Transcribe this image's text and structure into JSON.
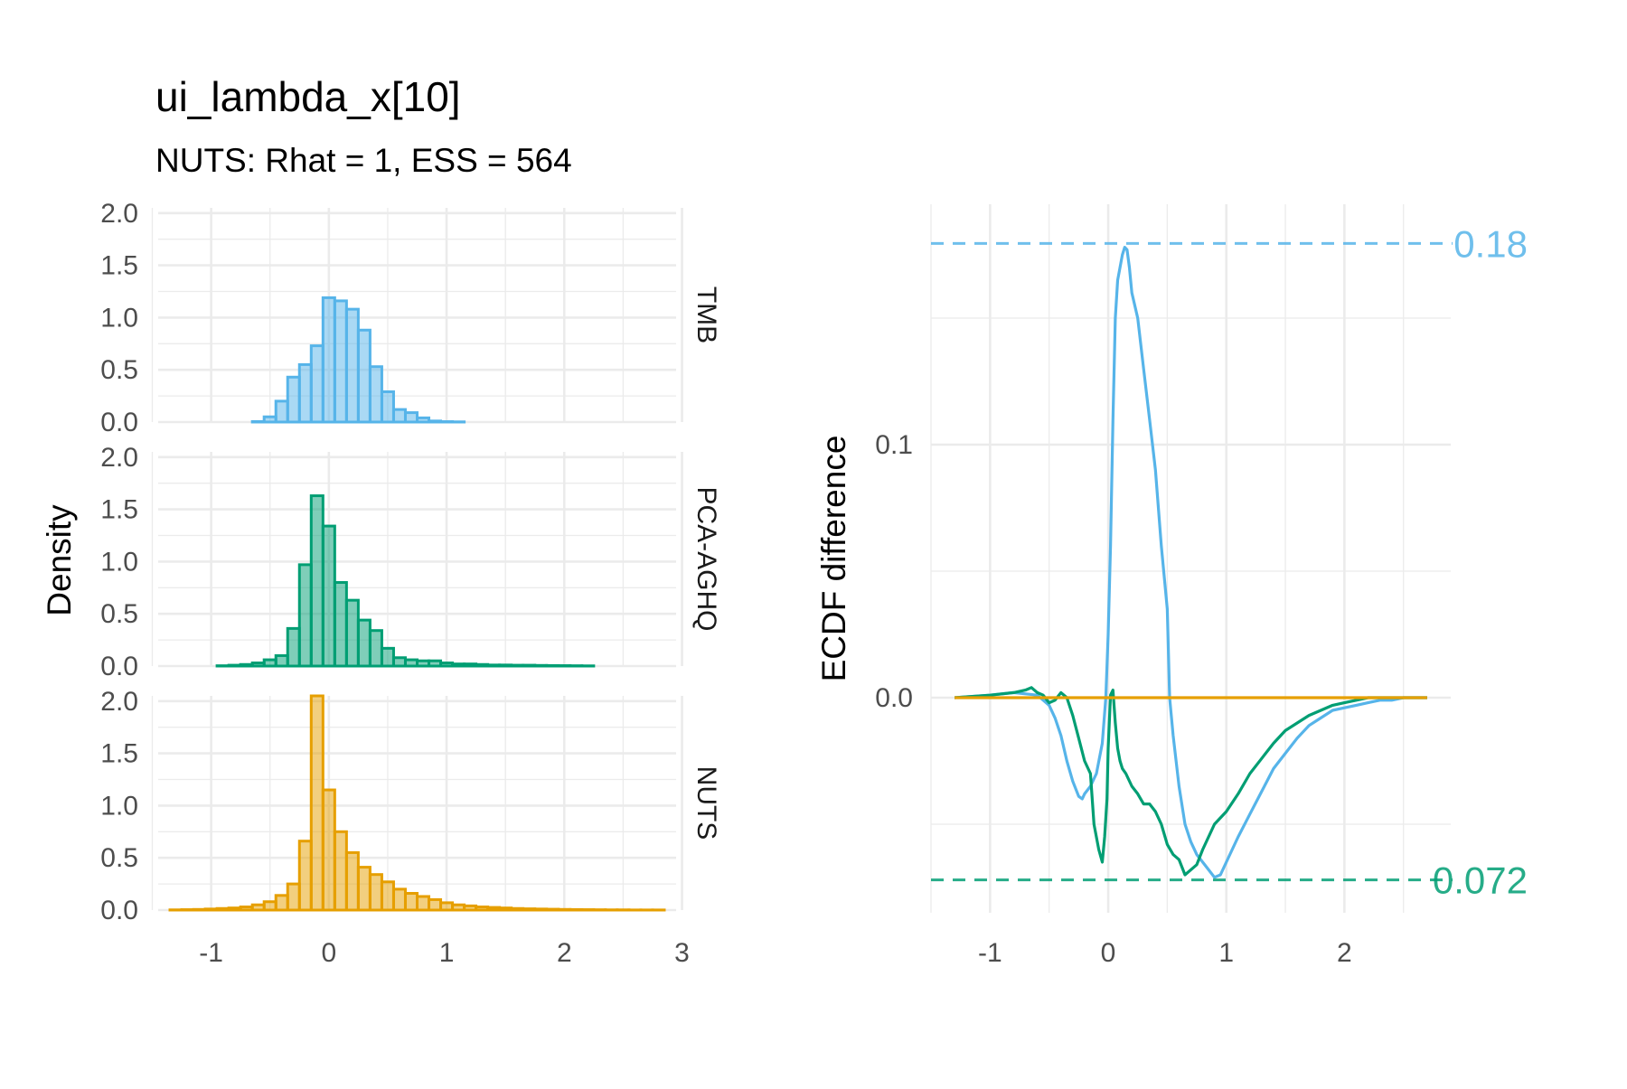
{
  "title": "ui_lambda_x[10]",
  "subtitle": "NUTS: Rhat = 1, ESS = 564",
  "colors": {
    "TMB": "#56B4E9",
    "PCA-AGHQ": "#009E73",
    "NUTS": "#E69F00"
  },
  "chart_data": [
    {
      "type": "bar",
      "subtype": "faceted-histogram",
      "ylabel": "Density",
      "xlabel": "",
      "x_ticks": [
        "-1",
        "0",
        "1",
        "2",
        "3"
      ],
      "y_ticks": [
        "0.0",
        "0.5",
        "1.0",
        "1.5",
        "2.0"
      ],
      "xlim": [
        -1.45,
        2.95
      ],
      "ylim": [
        0,
        2.05
      ],
      "bin_width": 0.1,
      "grid": true,
      "facets": [
        {
          "name": "TMB",
          "bin_centers": [
            -1.3,
            -1.2,
            -1.1,
            -1.0,
            -0.9,
            -0.8,
            -0.7,
            -0.6,
            -0.5,
            -0.4,
            -0.3,
            -0.2,
            -0.1,
            0.0,
            0.1,
            0.2,
            0.3,
            0.4,
            0.5,
            0.6,
            0.7,
            0.8,
            0.9,
            1.0,
            1.1,
            1.2,
            1.3,
            1.4,
            1.5,
            1.6,
            1.7,
            1.8,
            1.9,
            2.0,
            2.1,
            2.2,
            2.3,
            2.4,
            2.5,
            2.6,
            2.7,
            2.8
          ],
          "values": [
            0,
            0,
            0,
            0,
            0,
            0,
            0,
            0.005,
            0.05,
            0.2,
            0.43,
            0.55,
            0.73,
            1.19,
            1.16,
            1.08,
            0.88,
            0.53,
            0.29,
            0.12,
            0.09,
            0.04,
            0.01,
            0.004,
            0.002,
            0,
            0,
            0,
            0,
            0,
            0,
            0,
            0,
            0,
            0,
            0,
            0,
            0,
            0,
            0,
            0,
            0
          ]
        },
        {
          "name": "PCA-AGHQ",
          "bin_centers": [
            -1.3,
            -1.2,
            -1.1,
            -1.0,
            -0.9,
            -0.8,
            -0.7,
            -0.6,
            -0.5,
            -0.4,
            -0.3,
            -0.2,
            -0.1,
            0.0,
            0.1,
            0.2,
            0.3,
            0.4,
            0.5,
            0.6,
            0.7,
            0.8,
            0.9,
            1.0,
            1.1,
            1.2,
            1.3,
            1.4,
            1.5,
            1.6,
            1.7,
            1.8,
            1.9,
            2.0,
            2.1,
            2.2,
            2.3,
            2.4,
            2.5,
            2.6,
            2.7,
            2.8
          ],
          "values": [
            0,
            0,
            0,
            0,
            0.003,
            0.008,
            0.015,
            0.03,
            0.06,
            0.1,
            0.36,
            0.97,
            1.63,
            1.34,
            0.8,
            0.63,
            0.44,
            0.34,
            0.17,
            0.08,
            0.06,
            0.05,
            0.05,
            0.03,
            0.02,
            0.02,
            0.015,
            0.01,
            0.01,
            0.008,
            0.008,
            0.006,
            0.005,
            0.004,
            0.003,
            0.002,
            0,
            0,
            0,
            0,
            0,
            0
          ]
        },
        {
          "name": "NUTS",
          "bin_centers": [
            -1.3,
            -1.2,
            -1.1,
            -1.0,
            -0.9,
            -0.8,
            -0.7,
            -0.6,
            -0.5,
            -0.4,
            -0.3,
            -0.2,
            -0.1,
            0.0,
            0.1,
            0.2,
            0.3,
            0.4,
            0.5,
            0.6,
            0.7,
            0.8,
            0.9,
            1.0,
            1.1,
            1.2,
            1.3,
            1.4,
            1.5,
            1.6,
            1.7,
            1.8,
            1.9,
            2.0,
            2.1,
            2.2,
            2.3,
            2.4,
            2.5,
            2.6,
            2.7,
            2.8
          ],
          "values": [
            0.002,
            0.004,
            0.006,
            0.01,
            0.015,
            0.02,
            0.03,
            0.05,
            0.08,
            0.14,
            0.25,
            0.66,
            2.05,
            1.15,
            0.75,
            0.55,
            0.41,
            0.34,
            0.27,
            0.2,
            0.16,
            0.13,
            0.1,
            0.07,
            0.05,
            0.04,
            0.03,
            0.025,
            0.02,
            0.015,
            0.012,
            0.01,
            0.008,
            0.006,
            0.005,
            0.004,
            0.003,
            0.002,
            0.002,
            0.001,
            0.001,
            0.001
          ]
        }
      ]
    },
    {
      "type": "line",
      "ylabel": "ECDF difference",
      "xlabel": "",
      "x_ticks": [
        "-1",
        "0",
        "1",
        "2"
      ],
      "y_ticks": [
        "0.0",
        "0.1"
      ],
      "xlim": [
        -1.5,
        2.9
      ],
      "ylim": [
        -0.085,
        0.195
      ],
      "grid": true,
      "series": [
        {
          "name": "TMB",
          "x": [
            -1.3,
            -1.0,
            -0.8,
            -0.6,
            -0.5,
            -0.45,
            -0.4,
            -0.35,
            -0.3,
            -0.25,
            -0.22,
            -0.2,
            -0.15,
            -0.1,
            -0.05,
            -0.02,
            0.0,
            0.02,
            0.04,
            0.06,
            0.08,
            0.1,
            0.12,
            0.14,
            0.16,
            0.18,
            0.2,
            0.25,
            0.3,
            0.35,
            0.4,
            0.45,
            0.5,
            0.52,
            0.55,
            0.6,
            0.65,
            0.7,
            0.75,
            0.8,
            0.85,
            0.9,
            0.95,
            1.0,
            1.1,
            1.2,
            1.3,
            1.4,
            1.5,
            1.6,
            1.7,
            1.8,
            1.9,
            2.0,
            2.1,
            2.2,
            2.3,
            2.4,
            2.5,
            2.6,
            2.7
          ],
          "values": [
            0,
            0.001,
            0.002,
            0.001,
            -0.003,
            -0.008,
            -0.015,
            -0.025,
            -0.033,
            -0.039,
            -0.04,
            -0.038,
            -0.035,
            -0.03,
            -0.018,
            0.0,
            0.025,
            0.06,
            0.11,
            0.15,
            0.165,
            0.17,
            0.175,
            0.178,
            0.177,
            0.17,
            0.16,
            0.15,
            0.13,
            0.11,
            0.09,
            0.06,
            0.035,
            0.0,
            -0.015,
            -0.035,
            -0.05,
            -0.057,
            -0.062,
            -0.065,
            -0.068,
            -0.071,
            -0.07,
            -0.065,
            -0.055,
            -0.046,
            -0.037,
            -0.028,
            -0.022,
            -0.016,
            -0.011,
            -0.008,
            -0.005,
            -0.004,
            -0.003,
            -0.002,
            -0.001,
            -0.001,
            0,
            0,
            0
          ]
        },
        {
          "name": "PCA-AGHQ",
          "x": [
            -1.3,
            -1.0,
            -0.8,
            -0.7,
            -0.65,
            -0.6,
            -0.55,
            -0.5,
            -0.45,
            -0.4,
            -0.35,
            -0.3,
            -0.25,
            -0.2,
            -0.15,
            -0.12,
            -0.08,
            -0.05,
            -0.03,
            -0.01,
            0.0,
            0.02,
            0.04,
            0.06,
            0.08,
            0.1,
            0.12,
            0.15,
            0.2,
            0.25,
            0.3,
            0.35,
            0.4,
            0.45,
            0.5,
            0.55,
            0.6,
            0.65,
            0.7,
            0.75,
            0.8,
            0.85,
            0.9,
            1.0,
            1.1,
            1.2,
            1.3,
            1.4,
            1.5,
            1.6,
            1.7,
            1.8,
            1.9,
            2.0,
            2.1,
            2.2,
            2.4,
            2.7
          ],
          "values": [
            0,
            0.001,
            0.002,
            0.003,
            0.004,
            0.002,
            0.001,
            -0.002,
            -0.001,
            0.002,
            0.0,
            -0.007,
            -0.016,
            -0.025,
            -0.03,
            -0.05,
            -0.06,
            -0.065,
            -0.055,
            -0.04,
            -0.02,
            0.001,
            0.003,
            -0.01,
            -0.02,
            -0.025,
            -0.028,
            -0.03,
            -0.035,
            -0.038,
            -0.042,
            -0.042,
            -0.045,
            -0.05,
            -0.058,
            -0.062,
            -0.064,
            -0.07,
            -0.068,
            -0.066,
            -0.06,
            -0.055,
            -0.05,
            -0.045,
            -0.038,
            -0.03,
            -0.024,
            -0.018,
            -0.013,
            -0.01,
            -0.007,
            -0.005,
            -0.003,
            -0.002,
            -0.001,
            0.0,
            0.0,
            0.0
          ]
        },
        {
          "name": "NUTS",
          "x": [
            -1.3,
            2.7
          ],
          "values": [
            0,
            0
          ]
        }
      ],
      "annotations": [
        {
          "label": "0.18",
          "value": 0.1795,
          "series": "TMB"
        },
        {
          "label": "0.072",
          "value": -0.072,
          "series": "PCA-AGHQ"
        }
      ]
    }
  ]
}
